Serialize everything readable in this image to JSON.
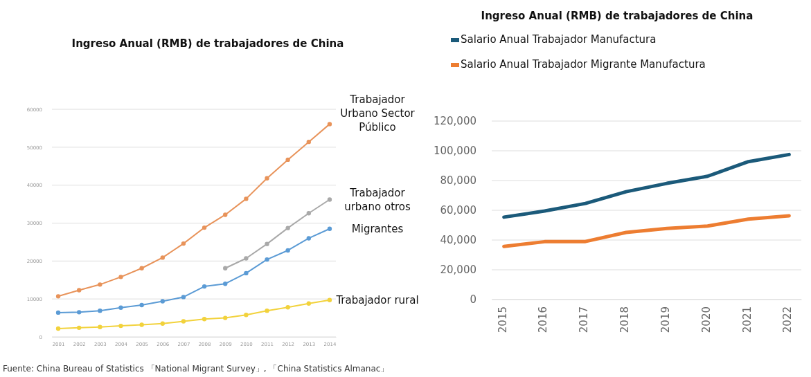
{
  "chart_data": [
    {
      "type": "line",
      "title": "Ingreso Anual (RMB) de trabajadores de China",
      "categories": [
        "2001",
        "2002",
        "2003",
        "2004",
        "2005",
        "2006",
        "2007",
        "2008",
        "2009",
        "2010",
        "2011",
        "2012",
        "2013",
        "2014"
      ],
      "series": [
        {
          "name": "Trabajador Urbano Sector Público",
          "color": "#e8935a",
          "values": [
            10700,
            12300,
            13800,
            15800,
            18100,
            20900,
            24600,
            28800,
            32200,
            36400,
            41800,
            46700,
            51400,
            56100
          ]
        },
        {
          "name": "Trabajador urbano otros",
          "color": "#a9a9a9",
          "values": [
            null,
            null,
            null,
            null,
            null,
            null,
            null,
            null,
            18100,
            20700,
            24500,
            28700,
            32600,
            36200
          ]
        },
        {
          "name": "Migrantes",
          "color": "#5b9bd5",
          "values": [
            6400,
            6500,
            6900,
            7700,
            8400,
            9400,
            10500,
            13300,
            14000,
            16800,
            20400,
            22800,
            26000,
            28500
          ]
        },
        {
          "name": "Trabajador rural",
          "color": "#f2d23c",
          "values": [
            2200,
            2400,
            2600,
            2900,
            3200,
            3500,
            4100,
            4700,
            5000,
            5800,
            6900,
            7800,
            8800,
            9700
          ]
        }
      ],
      "ylim": [
        0,
        60000
      ],
      "yticks": [
        0,
        10000,
        20000,
        30000,
        40000,
        50000,
        60000
      ],
      "grid": "y",
      "marker": "circle",
      "legend": false,
      "annotations": [
        "Fuente: China Bureau of Statistics 「National Migrant Survey」, 「China Statistics Almanac」"
      ]
    },
    {
      "type": "line",
      "title": "Ingreso Anual (RMB) de trabajadores de China",
      "categories": [
        "2015",
        "2016",
        "2017",
        "2018",
        "2019",
        "2020",
        "2021",
        "2022"
      ],
      "series": [
        {
          "name": "Salario Anual Trabajador Manufactura",
          "color": "#1b5a7a",
          "values": [
            55400,
            59500,
            64600,
            72500,
            78100,
            82900,
            92700,
            97500
          ]
        },
        {
          "name": "Salario Anual Trabajador Migrante Manufactura",
          "color": "#ed7d31",
          "values": [
            35700,
            38900,
            39000,
            45100,
            47800,
            49400,
            54100,
            56300
          ]
        }
      ],
      "ylim": [
        0,
        120000
      ],
      "yticks": [
        0,
        {
          "value": 20000,
          "label": "20,000"
        },
        {
          "value": 40000,
          "label": "40,000"
        },
        {
          "value": 60000,
          "label": "60,000"
        },
        {
          "value": 80000,
          "label": "80,000"
        },
        {
          "value": 100000,
          "label": "100,000"
        },
        {
          "value": 120000,
          "label": "120,000"
        }
      ],
      "grid": "y",
      "legend": "top"
    }
  ]
}
